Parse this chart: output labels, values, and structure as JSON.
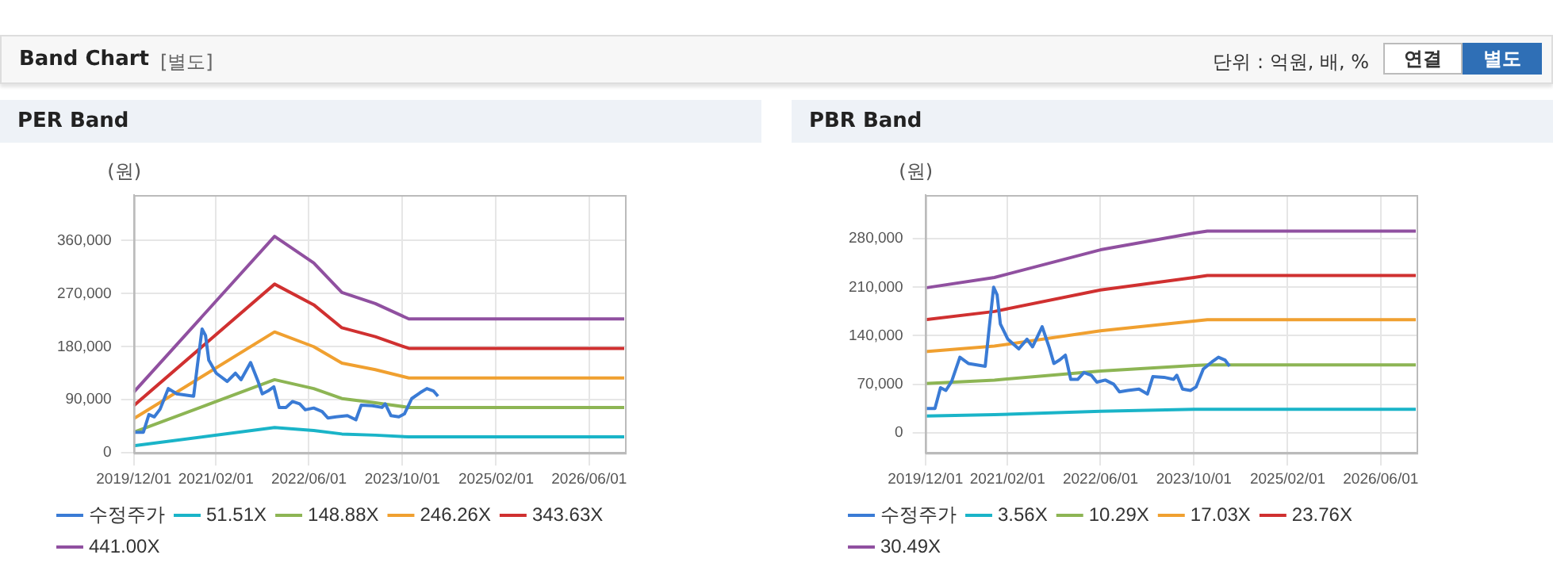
{
  "chart_data": [
    {
      "type": "line",
      "title": "PER Band",
      "ylabel": "(원)",
      "annotations": [
        "Band Chart",
        "[별도]",
        "단위 : 억원, 배, %",
        "연결",
        "별도"
      ],
      "xlim": [
        "2019-12-01",
        "2026-12-05"
      ],
      "xticks": [
        {
          "value": "2019-12-01",
          "label": "2019/12/01"
        },
        {
          "value": "2021-02-01",
          "label": "2021/02/01"
        },
        {
          "value": "2022-06-01",
          "label": "2022/06/01"
        },
        {
          "value": "2023-10-01",
          "label": "2023/10/01"
        },
        {
          "value": "2025-02-01",
          "label": "2025/02/01"
        },
        {
          "value": "2026-06-01",
          "label": "2026/06/01"
        }
      ],
      "ylim": [
        0,
        437000
      ],
      "yticks": [
        0,
        {
          "value": 90000,
          "label": "90,000"
        },
        {
          "value": 180000,
          "label": "180,000"
        },
        {
          "value": 270000,
          "label": "270,000"
        },
        {
          "value": 360000,
          "label": "360,000"
        }
      ],
      "grid": true,
      "legend": "bottom",
      "marker": "none",
      "line_style": "solid",
      "series": [
        {
          "name": "수정주가",
          "color": "#3a7bd5",
          "x": [
            "2019-12-01",
            "2020-01-20",
            "2020-02-18",
            "2020-03-17",
            "2020-04-16",
            "2020-05-29",
            "2020-07-12",
            "2020-08-25",
            "2020-10-08",
            "2020-10-28",
            "2020-11-21",
            "2020-12-09",
            "2020-12-26",
            "2021-02-03",
            "2021-04-01",
            "2021-05-14",
            "2021-06-12",
            "2021-08-01",
            "2021-09-08",
            "2021-10-01",
            "2021-10-31",
            "2021-11-30",
            "2021-12-28",
            "2022-02-02",
            "2022-03-07",
            "2022-04-14",
            "2022-05-13",
            "2022-06-26",
            "2022-08-09",
            "2022-09-08",
            "2022-10-21",
            "2022-12-19",
            "2023-02-01",
            "2023-03-01",
            "2023-04-28",
            "2023-06-17",
            "2023-07-04",
            "2023-08-03",
            "2023-09-13",
            "2023-10-12",
            "2023-11-19",
            "2024-01-02",
            "2024-02-06",
            "2024-03-11",
            "2024-04-04"
          ],
          "values": [
            35000,
            35000,
            65000,
            61000,
            74000,
            109000,
            100000,
            98000,
            96000,
            149000,
            210000,
            199000,
            157000,
            135000,
            121000,
            135000,
            124000,
            153000,
            122000,
            100000,
            105000,
            112000,
            77000,
            77000,
            87000,
            83000,
            73000,
            76000,
            70000,
            59000,
            61000,
            63000,
            56000,
            81000,
            80000,
            77000,
            83000,
            63000,
            61000,
            66000,
            92000,
            102000,
            109000,
            105000,
            96000
          ]
        },
        {
          "name": "51.51X",
          "color": "#1ab4c8",
          "x": [
            "2019-12-01",
            "2021-12-04",
            "2022-06-26",
            "2022-11-20",
            "2023-05-13",
            "2023-11-04",
            "2026-12-01"
          ],
          "values": [
            12000,
            43000,
            38000,
            32000,
            30000,
            27000,
            27000
          ]
        },
        {
          "name": "148.88X",
          "color": "#8db554",
          "x": [
            "2019-12-01",
            "2021-12-04",
            "2022-06-26",
            "2022-11-20",
            "2023-05-13",
            "2023-11-04",
            "2026-12-01"
          ],
          "values": [
            35000,
            124000,
            109000,
            92000,
            85000,
            77000,
            77000
          ]
        },
        {
          "name": "246.26X",
          "color": "#f0a030",
          "x": [
            "2019-12-01",
            "2021-12-04",
            "2022-06-26",
            "2022-11-20",
            "2023-05-13",
            "2023-11-04",
            "2026-12-01"
          ],
          "values": [
            58000,
            205000,
            180000,
            152000,
            141000,
            127000,
            127000
          ]
        },
        {
          "name": "343.63X",
          "color": "#d03030",
          "x": [
            "2019-12-01",
            "2021-12-04",
            "2022-06-26",
            "2022-11-20",
            "2023-05-13",
            "2023-11-04",
            "2026-12-01"
          ],
          "values": [
            80000,
            286000,
            251000,
            212000,
            197000,
            177000,
            177000
          ]
        },
        {
          "name": "441.00X",
          "color": "#9050a0",
          "x": [
            "2019-12-01",
            "2021-12-04",
            "2022-06-26",
            "2022-11-20",
            "2023-05-13",
            "2023-11-04",
            "2026-12-01"
          ],
          "values": [
            103000,
            367000,
            322000,
            272000,
            253000,
            227000,
            227000
          ]
        }
      ]
    },
    {
      "type": "line",
      "title": "PBR Band",
      "ylabel": "(원)",
      "xlim": [
        "2019-12-01",
        "2026-12-05"
      ],
      "xticks": [
        {
          "value": "2019-12-01",
          "label": "2019/12/01"
        },
        {
          "value": "2021-02-01",
          "label": "2021/02/01"
        },
        {
          "value": "2022-06-01",
          "label": "2022/06/01"
        },
        {
          "value": "2023-10-01",
          "label": "2023/10/01"
        },
        {
          "value": "2025-02-01",
          "label": "2025/02/01"
        },
        {
          "value": "2026-06-01",
          "label": "2026/06/01"
        }
      ],
      "ylim": [
        -29000,
        343000
      ],
      "yticks": [
        0,
        {
          "value": 70000,
          "label": "70,000"
        },
        {
          "value": 140000,
          "label": "140,000"
        },
        {
          "value": 210000,
          "label": "210,000"
        },
        {
          "value": 280000,
          "label": "280,000"
        }
      ],
      "grid": true,
      "legend": "bottom",
      "marker": "none",
      "line_style": "solid",
      "series": [
        {
          "name": "수정주가",
          "color": "#3a7bd5",
          "x": [
            "2019-12-01",
            "2020-01-20",
            "2020-02-18",
            "2020-03-17",
            "2020-04-16",
            "2020-05-29",
            "2020-07-12",
            "2020-08-25",
            "2020-10-08",
            "2020-10-28",
            "2020-11-21",
            "2020-12-09",
            "2020-12-26",
            "2021-02-03",
            "2021-04-01",
            "2021-05-14",
            "2021-06-12",
            "2021-08-01",
            "2021-09-08",
            "2021-10-01",
            "2021-10-31",
            "2021-11-30",
            "2021-12-28",
            "2022-02-02",
            "2022-03-07",
            "2022-04-14",
            "2022-05-13",
            "2022-06-26",
            "2022-08-09",
            "2022-09-08",
            "2022-10-21",
            "2022-12-19",
            "2023-02-01",
            "2023-03-01",
            "2023-04-28",
            "2023-06-17",
            "2023-07-04",
            "2023-08-03",
            "2023-09-13",
            "2023-10-12",
            "2023-11-19",
            "2024-01-02",
            "2024-02-06",
            "2024-03-11",
            "2024-04-04"
          ],
          "values": [
            35000,
            35000,
            65000,
            61000,
            74000,
            109000,
            100000,
            98000,
            96000,
            149000,
            210000,
            199000,
            157000,
            135000,
            121000,
            135000,
            124000,
            153000,
            122000,
            100000,
            105000,
            112000,
            77000,
            77000,
            87000,
            83000,
            73000,
            76000,
            70000,
            59000,
            61000,
            63000,
            56000,
            81000,
            80000,
            77000,
            83000,
            63000,
            61000,
            66000,
            92000,
            102000,
            109000,
            105000,
            96000
          ]
        },
        {
          "name": "3.56X",
          "color": "#1ab4c8",
          "x": [
            "2019-12-01",
            "2020-11-25",
            "2022-06-01",
            "2023-10-01",
            "2023-12-10",
            "2026-12-01"
          ],
          "values": [
            24000,
            26000,
            31000,
            34000,
            34000,
            34000
          ]
        },
        {
          "name": "10.29X",
          "color": "#8db554",
          "x": [
            "2019-12-01",
            "2020-11-25",
            "2022-06-01",
            "2023-10-01",
            "2023-12-10",
            "2026-12-01"
          ],
          "values": [
            71000,
            76000,
            89000,
            97000,
            98000,
            98000
          ]
        },
        {
          "name": "17.03X",
          "color": "#f0a030",
          "x": [
            "2019-12-01",
            "2020-11-25",
            "2022-06-01",
            "2023-10-01",
            "2023-12-10",
            "2026-12-01"
          ],
          "values": [
            117000,
            125000,
            147000,
            161000,
            163000,
            163000
          ]
        },
        {
          "name": "23.76X",
          "color": "#d03030",
          "x": [
            "2019-12-01",
            "2020-11-25",
            "2022-06-01",
            "2023-10-01",
            "2023-12-10",
            "2026-12-01"
          ],
          "values": [
            163000,
            175000,
            206000,
            224000,
            227000,
            227000
          ]
        },
        {
          "name": "30.49X",
          "color": "#9050a0",
          "x": [
            "2019-12-01",
            "2020-11-25",
            "2022-06-01",
            "2023-10-01",
            "2023-12-10",
            "2026-12-01"
          ],
          "values": [
            209000,
            224000,
            264000,
            288000,
            291000,
            291000
          ]
        }
      ]
    }
  ]
}
